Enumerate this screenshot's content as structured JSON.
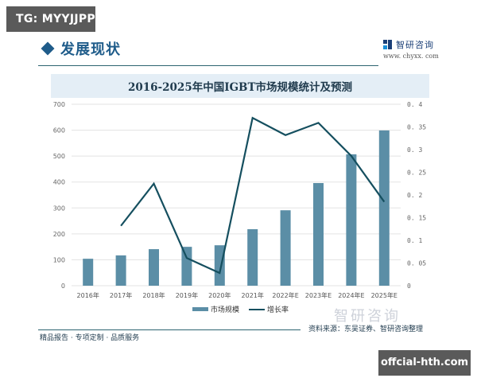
{
  "badges": {
    "top_left": "TG: MYYJJPP",
    "bottom_right": "offcial-hth.com"
  },
  "header": {
    "section_title": "发展现状",
    "brand_name": "智研咨询",
    "brand_url": "www. chyxx. com"
  },
  "footer": {
    "tagline": "精品报告 · 专项定制 · 品质服务",
    "source": "资料来源：东吴证券、智研咨询整理",
    "watermark": "智研咨询"
  },
  "legend": {
    "bar_label": "市场规模",
    "line_label": "增长率"
  },
  "colors": {
    "bar": "#5b8ea6",
    "line": "#154f5f",
    "grid": "#e3e3e3",
    "title_band": "#e4eef6",
    "accent": "#1f5c8a"
  },
  "chart_data": {
    "type": "bar+line",
    "title": "2016-2025年中国IGBT市场规模统计及预测",
    "xlabel": "",
    "ylabel_left": "",
    "ylabel_right": "",
    "categories": [
      "2016年",
      "2017年",
      "2018年",
      "2019年",
      "2020年",
      "2021年",
      "2022年E",
      "2023年E",
      "2024年E",
      "2025年E"
    ],
    "series": [
      {
        "name": "市场规模",
        "type": "bar",
        "axis": "left",
        "values": [
          104,
          117,
          141,
          150,
          156,
          218,
          291,
          396,
          507,
          599
        ]
      },
      {
        "name": "增长率",
        "type": "line",
        "axis": "right",
        "values": [
          null,
          0.132,
          0.225,
          0.061,
          0.028,
          0.37,
          0.332,
          0.359,
          0.286,
          0.185
        ]
      }
    ],
    "ylim_left": [
      0,
      700
    ],
    "yticks_left": [
      "0",
      "100",
      "200",
      "300",
      "400",
      "500",
      "600",
      "700"
    ],
    "ylim_right": [
      0,
      0.4
    ],
    "yticks_right": [
      "0",
      "0. 05",
      "0. 1",
      "0. 15",
      "0. 2",
      "0. 25",
      "0. 3",
      "0. 35",
      "0. 4"
    ],
    "grid": true,
    "legend_position": "bottom"
  }
}
